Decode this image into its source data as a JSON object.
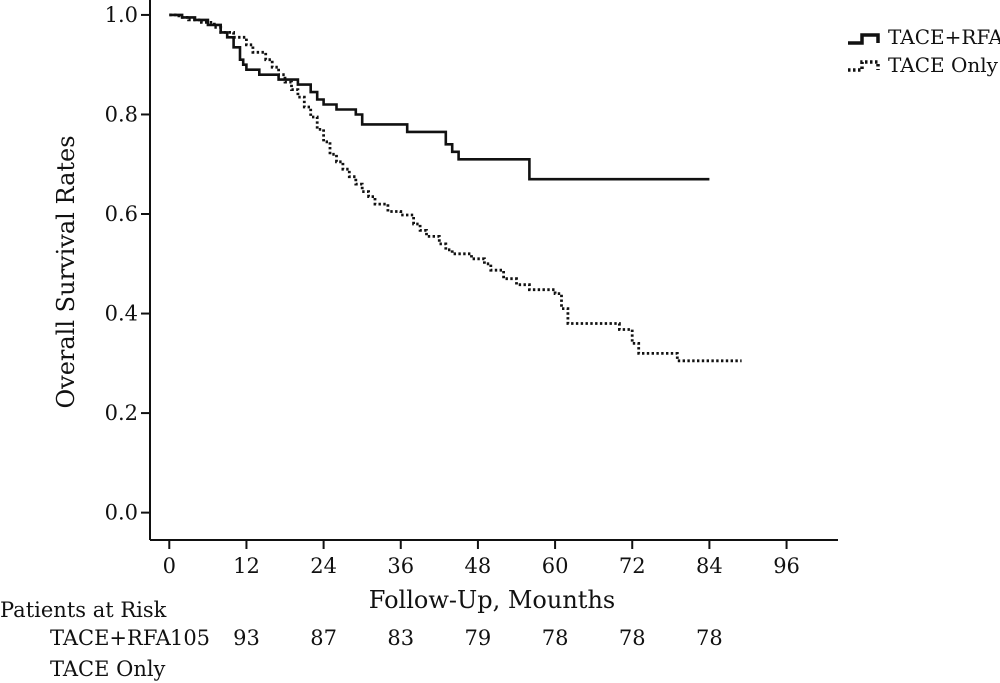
{
  "chart_data": {
    "type": "line",
    "xlabel": "Follow-Up, Mounths",
    "ylabel": "Overall Survival Rates",
    "xlim": [
      -3,
      104
    ],
    "ylim": [
      -0.055,
      1.03
    ],
    "x_ticks": [
      0,
      12,
      24,
      36,
      48,
      60,
      72,
      84,
      96
    ],
    "y_ticks": [
      0.0,
      0.2,
      0.4,
      0.6,
      0.8,
      1.0
    ],
    "y_tick_labels": [
      "0.0",
      "0.2",
      "0.4",
      "0.6",
      "0.8",
      "1.0"
    ],
    "legend_position": "top-right",
    "series": [
      {
        "name": "TACE+RFA",
        "style": "solid",
        "color": "#111111",
        "step_points": [
          [
            0,
            1.0
          ],
          [
            2,
            0.995
          ],
          [
            4,
            0.99
          ],
          [
            6,
            0.98
          ],
          [
            8,
            0.965
          ],
          [
            9,
            0.955
          ],
          [
            10,
            0.935
          ],
          [
            11,
            0.91
          ],
          [
            11.5,
            0.9
          ],
          [
            12,
            0.89
          ],
          [
            14,
            0.88
          ],
          [
            17,
            0.87
          ],
          [
            20,
            0.86
          ],
          [
            22,
            0.845
          ],
          [
            23,
            0.83
          ],
          [
            24,
            0.82
          ],
          [
            26,
            0.81
          ],
          [
            29,
            0.8
          ],
          [
            30,
            0.78
          ],
          [
            37,
            0.765
          ],
          [
            43,
            0.74
          ],
          [
            44,
            0.725
          ],
          [
            45,
            0.71
          ],
          [
            56,
            0.67
          ],
          [
            84,
            0.67
          ]
        ]
      },
      {
        "name": "TACE Only",
        "style": "dotted",
        "color": "#111111",
        "step_points": [
          [
            0,
            1.0
          ],
          [
            1.5,
            0.995
          ],
          [
            3,
            0.99
          ],
          [
            5,
            0.985
          ],
          [
            7,
            0.975
          ],
          [
            8,
            0.965
          ],
          [
            10,
            0.955
          ],
          [
            12,
            0.94
          ],
          [
            13,
            0.925
          ],
          [
            15,
            0.91
          ],
          [
            16,
            0.895
          ],
          [
            17,
            0.88
          ],
          [
            18,
            0.865
          ],
          [
            19,
            0.85
          ],
          [
            20,
            0.835
          ],
          [
            21,
            0.815
          ],
          [
            22,
            0.795
          ],
          [
            23,
            0.77
          ],
          [
            24,
            0.745
          ],
          [
            25,
            0.72
          ],
          [
            26,
            0.705
          ],
          [
            27,
            0.69
          ],
          [
            28,
            0.675
          ],
          [
            29,
            0.66
          ],
          [
            30,
            0.645
          ],
          [
            31,
            0.635
          ],
          [
            32,
            0.62
          ],
          [
            34,
            0.605
          ],
          [
            36,
            0.598
          ],
          [
            38,
            0.58
          ],
          [
            39,
            0.567
          ],
          [
            40,
            0.555
          ],
          [
            42,
            0.54
          ],
          [
            43,
            0.528
          ],
          [
            44,
            0.52
          ],
          [
            47,
            0.51
          ],
          [
            49,
            0.5
          ],
          [
            50,
            0.487
          ],
          [
            52,
            0.47
          ],
          [
            54,
            0.458
          ],
          [
            56,
            0.448
          ],
          [
            60,
            0.44
          ],
          [
            61,
            0.41
          ],
          [
            62,
            0.38
          ],
          [
            70,
            0.368
          ],
          [
            72,
            0.34
          ],
          [
            73,
            0.32
          ],
          [
            79,
            0.305
          ],
          [
            89,
            0.305
          ]
        ]
      }
    ],
    "patients_at_risk": {
      "title": "Patients at Risk",
      "rows": [
        {
          "label": "TACE+RFA",
          "values": [
            "105",
            "93",
            "87",
            "83",
            "79",
            "78",
            "78",
            "78"
          ],
          "months": [
            0,
            12,
            24,
            36,
            48,
            60,
            72,
            84
          ]
        },
        {
          "label": "TACE Only",
          "values": [],
          "months": []
        }
      ]
    }
  }
}
